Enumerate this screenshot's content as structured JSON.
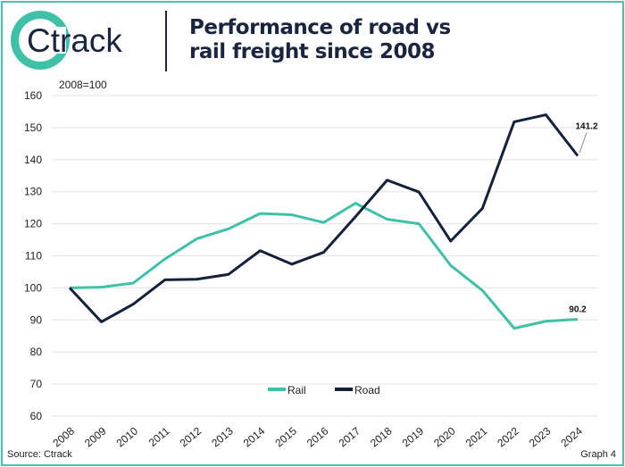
{
  "brand": {
    "logo_text": "Ctrack"
  },
  "header": {
    "title_line1": "Performance of road vs",
    "title_line2": "rail freight since 2008"
  },
  "footer": {
    "source": "Source: Ctrack",
    "graph_label": "Graph 4"
  },
  "chart_data": {
    "type": "line",
    "title": "Performance of road vs rail freight since 2008",
    "ylabel": "2008=100",
    "xlabel": "",
    "ylim": [
      60,
      160
    ],
    "yticks": [
      60,
      70,
      80,
      90,
      100,
      110,
      120,
      130,
      140,
      150,
      160
    ],
    "grid": true,
    "legend": "bottom-center",
    "categories": [
      "2008",
      "2009",
      "2010",
      "2011",
      "2012",
      "2013",
      "2014",
      "2015",
      "2016",
      "2017",
      "2018",
      "2019",
      "2020",
      "2021",
      "2022",
      "2023",
      "2024"
    ],
    "series": [
      {
        "name": "Rail",
        "color": "#3fc1a8",
        "values": [
          100,
          100.2,
          101.5,
          109,
          115.3,
          118.4,
          123.2,
          122.8,
          120.4,
          126.4,
          121.4,
          120,
          107,
          99.2,
          87.4,
          89.6,
          90.2
        ],
        "end_label": "90.2"
      },
      {
        "name": "Road",
        "color": "#14213d",
        "values": [
          100,
          89.4,
          94.9,
          102.5,
          102.7,
          104.2,
          111.6,
          107.4,
          111.1,
          122.2,
          133.6,
          129.9,
          114.6,
          124.8,
          151.8,
          154,
          141.2
        ],
        "end_label": "141.2"
      }
    ]
  }
}
